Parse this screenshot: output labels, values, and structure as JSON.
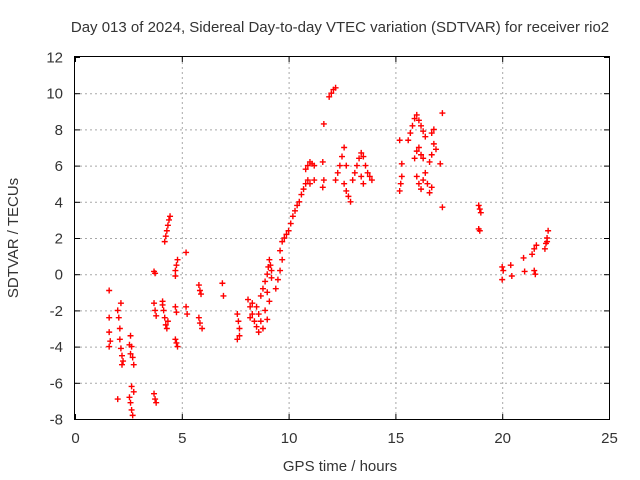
{
  "chart_data": {
    "type": "scatter",
    "title": "Day 013 of 2024, Sidereal Day-to-day VTEC variation (SDTVAR) for receiver rio2",
    "xlabel": "GPS time / hours",
    "ylabel": "SDTVAR / TECUs",
    "xlim": [
      0,
      25
    ],
    "ylim": [
      -8,
      12
    ],
    "xticks": [
      "0",
      "5",
      "10",
      "15",
      "20",
      "25"
    ],
    "yticks": [
      "-8",
      "-6",
      "-4",
      "-2",
      "0",
      "2",
      "4",
      "6",
      "8",
      "10",
      "12"
    ],
    "grid": true,
    "marker": "plus",
    "color": "#ff0000",
    "series": [
      {
        "values": [
          [
            1.6,
            -0.9
          ],
          [
            1.6,
            -2.4
          ],
          [
            1.6,
            -3.2
          ],
          [
            1.65,
            -3.7
          ],
          [
            1.6,
            -4.0
          ],
          [
            2.0,
            -2.0
          ],
          [
            2.05,
            -2.4
          ],
          [
            2.1,
            -3.0
          ],
          [
            2.1,
            -3.6
          ],
          [
            2.15,
            -4.1
          ],
          [
            2.2,
            -4.5
          ],
          [
            2.25,
            -4.8
          ],
          [
            2.15,
            -1.6
          ],
          [
            2.0,
            -6.9
          ],
          [
            2.2,
            -5.0
          ],
          [
            2.6,
            -3.4
          ],
          [
            2.65,
            -4.0
          ],
          [
            2.7,
            -4.6
          ],
          [
            2.75,
            -5.0
          ],
          [
            2.6,
            -4.4
          ],
          [
            2.55,
            -3.9
          ],
          [
            2.55,
            -6.8
          ],
          [
            2.6,
            -7.1
          ],
          [
            2.65,
            -7.5
          ],
          [
            2.7,
            -7.8
          ],
          [
            2.75,
            -6.5
          ],
          [
            2.65,
            -6.2
          ],
          [
            3.7,
            0.15
          ],
          [
            3.75,
            0.05
          ],
          [
            3.7,
            -1.6
          ],
          [
            3.75,
            -2.0
          ],
          [
            3.8,
            -2.3
          ],
          [
            3.7,
            -6.6
          ],
          [
            3.75,
            -6.9
          ],
          [
            3.8,
            -7.1
          ],
          [
            4.1,
            -1.5
          ],
          [
            4.15,
            -2.0
          ],
          [
            4.2,
            -2.4
          ],
          [
            4.25,
            -2.8
          ],
          [
            4.3,
            -3.0
          ],
          [
            4.1,
            -1.7
          ],
          [
            4.35,
            -2.6
          ],
          [
            4.2,
            1.8
          ],
          [
            4.25,
            2.1
          ],
          [
            4.3,
            2.4
          ],
          [
            4.35,
            2.7
          ],
          [
            4.4,
            3.0
          ],
          [
            4.45,
            3.2
          ],
          [
            4.7,
            0.2
          ],
          [
            4.75,
            0.5
          ],
          [
            4.8,
            0.8
          ],
          [
            4.7,
            -0.1
          ],
          [
            4.7,
            -1.8
          ],
          [
            4.75,
            -2.1
          ],
          [
            4.7,
            -3.6
          ],
          [
            4.75,
            -3.8
          ],
          [
            4.8,
            -4.0
          ],
          [
            5.2,
            1.2
          ],
          [
            5.2,
            -1.8
          ],
          [
            5.25,
            -2.2
          ],
          [
            5.8,
            -0.6
          ],
          [
            5.85,
            -0.9
          ],
          [
            5.9,
            -1.1
          ],
          [
            5.8,
            -2.4
          ],
          [
            5.85,
            -2.7
          ],
          [
            5.95,
            -3.0
          ],
          [
            6.9,
            -0.5
          ],
          [
            6.95,
            -1.2
          ],
          [
            7.6,
            -2.2
          ],
          [
            7.65,
            -2.6
          ],
          [
            7.7,
            -3.0
          ],
          [
            7.6,
            -3.6
          ],
          [
            7.7,
            -3.4
          ],
          [
            8.1,
            -1.4
          ],
          [
            8.2,
            -1.8
          ],
          [
            8.3,
            -2.2
          ],
          [
            8.4,
            -2.6
          ],
          [
            8.5,
            -2.9
          ],
          [
            8.2,
            -2.4
          ],
          [
            8.3,
            -1.6
          ],
          [
            8.5,
            -1.8
          ],
          [
            8.6,
            -2.2
          ],
          [
            8.7,
            -2.6
          ],
          [
            8.8,
            -3.0
          ],
          [
            8.6,
            -3.2
          ],
          [
            8.7,
            -1.2
          ],
          [
            8.8,
            -0.8
          ],
          [
            8.9,
            -0.4
          ],
          [
            9.0,
            0.0
          ],
          [
            9.05,
            0.4
          ],
          [
            9.1,
            0.8
          ],
          [
            9.15,
            0.5
          ],
          [
            9.0,
            -1.0
          ],
          [
            9.1,
            -1.5
          ],
          [
            9.2,
            -0.2
          ],
          [
            9.2,
            0.2
          ],
          [
            8.9,
            -2.0
          ],
          [
            9.0,
            -2.5
          ],
          [
            9.4,
            -0.8
          ],
          [
            9.5,
            -0.3
          ],
          [
            9.6,
            0.2
          ],
          [
            9.7,
            0.8
          ],
          [
            9.6,
            1.3
          ],
          [
            9.7,
            1.8
          ],
          [
            9.8,
            2.0
          ],
          [
            9.9,
            2.2
          ],
          [
            10.0,
            2.4
          ],
          [
            10.1,
            2.8
          ],
          [
            10.2,
            3.2
          ],
          [
            10.3,
            3.5
          ],
          [
            10.4,
            3.8
          ],
          [
            10.5,
            4.0
          ],
          [
            10.6,
            4.4
          ],
          [
            10.7,
            4.7
          ],
          [
            10.8,
            5.0
          ],
          [
            10.9,
            5.2
          ],
          [
            11.0,
            5.0
          ],
          [
            11.2,
            5.2
          ],
          [
            10.8,
            5.8
          ],
          [
            10.9,
            6.0
          ],
          [
            11.0,
            6.2
          ],
          [
            11.1,
            6.1
          ],
          [
            11.2,
            6.0
          ],
          [
            11.6,
            4.8
          ],
          [
            11.65,
            5.2
          ],
          [
            11.6,
            6.2
          ],
          [
            11.65,
            8.3
          ],
          [
            11.9,
            9.8
          ],
          [
            12.0,
            10.0
          ],
          [
            12.1,
            10.2
          ],
          [
            12.2,
            10.3
          ],
          [
            12.2,
            5.2
          ],
          [
            12.3,
            5.6
          ],
          [
            12.4,
            6.0
          ],
          [
            12.5,
            6.5
          ],
          [
            12.6,
            7.0
          ],
          [
            12.6,
            5.0
          ],
          [
            12.7,
            4.6
          ],
          [
            12.8,
            4.3
          ],
          [
            12.9,
            4.0
          ],
          [
            12.7,
            6.0
          ],
          [
            13.0,
            5.2
          ],
          [
            13.1,
            5.6
          ],
          [
            13.2,
            6.0
          ],
          [
            13.3,
            6.4
          ],
          [
            13.4,
            6.7
          ],
          [
            13.5,
            6.5
          ],
          [
            13.6,
            6.0
          ],
          [
            13.7,
            5.6
          ],
          [
            13.8,
            5.4
          ],
          [
            13.9,
            5.2
          ],
          [
            13.5,
            5.0
          ],
          [
            13.4,
            5.4
          ],
          [
            15.2,
            4.6
          ],
          [
            15.25,
            5.0
          ],
          [
            15.3,
            5.4
          ],
          [
            15.3,
            6.1
          ],
          [
            15.2,
            7.4
          ],
          [
            15.6,
            7.4
          ],
          [
            15.7,
            7.8
          ],
          [
            15.8,
            8.2
          ],
          [
            15.9,
            8.6
          ],
          [
            16.0,
            8.8
          ],
          [
            16.1,
            8.5
          ],
          [
            16.2,
            8.2
          ],
          [
            16.3,
            7.9
          ],
          [
            16.4,
            7.6
          ],
          [
            15.9,
            6.4
          ],
          [
            16.0,
            6.8
          ],
          [
            16.1,
            7.0
          ],
          [
            16.2,
            6.6
          ],
          [
            16.3,
            6.4
          ],
          [
            16.0,
            5.4
          ],
          [
            16.1,
            5.0
          ],
          [
            16.2,
            4.7
          ],
          [
            16.3,
            5.2
          ],
          [
            16.4,
            5.6
          ],
          [
            16.5,
            5.0
          ],
          [
            16.6,
            4.5
          ],
          [
            16.7,
            4.8
          ],
          [
            16.6,
            6.2
          ],
          [
            16.7,
            6.6
          ],
          [
            16.8,
            7.2
          ],
          [
            16.9,
            6.9
          ],
          [
            16.8,
            8.0
          ],
          [
            16.7,
            7.8
          ],
          [
            17.1,
            6.1
          ],
          [
            17.2,
            8.9
          ],
          [
            17.2,
            3.7
          ],
          [
            18.9,
            3.8
          ],
          [
            18.95,
            3.6
          ],
          [
            19.0,
            3.4
          ],
          [
            18.9,
            2.5
          ],
          [
            18.95,
            2.4
          ],
          [
            20.0,
            0.4
          ],
          [
            20.05,
            0.2
          ],
          [
            20.0,
            -0.3
          ],
          [
            20.4,
            0.5
          ],
          [
            20.45,
            -0.1
          ],
          [
            21.0,
            0.9
          ],
          [
            21.05,
            0.15
          ],
          [
            21.4,
            1.1
          ],
          [
            21.5,
            1.4
          ],
          [
            21.6,
            1.6
          ],
          [
            21.5,
            0.2
          ],
          [
            21.55,
            0.0
          ],
          [
            22.0,
            1.4
          ],
          [
            22.05,
            1.7
          ],
          [
            22.1,
            2.0
          ],
          [
            22.15,
            2.4
          ],
          [
            22.1,
            1.8
          ]
        ]
      }
    ]
  }
}
